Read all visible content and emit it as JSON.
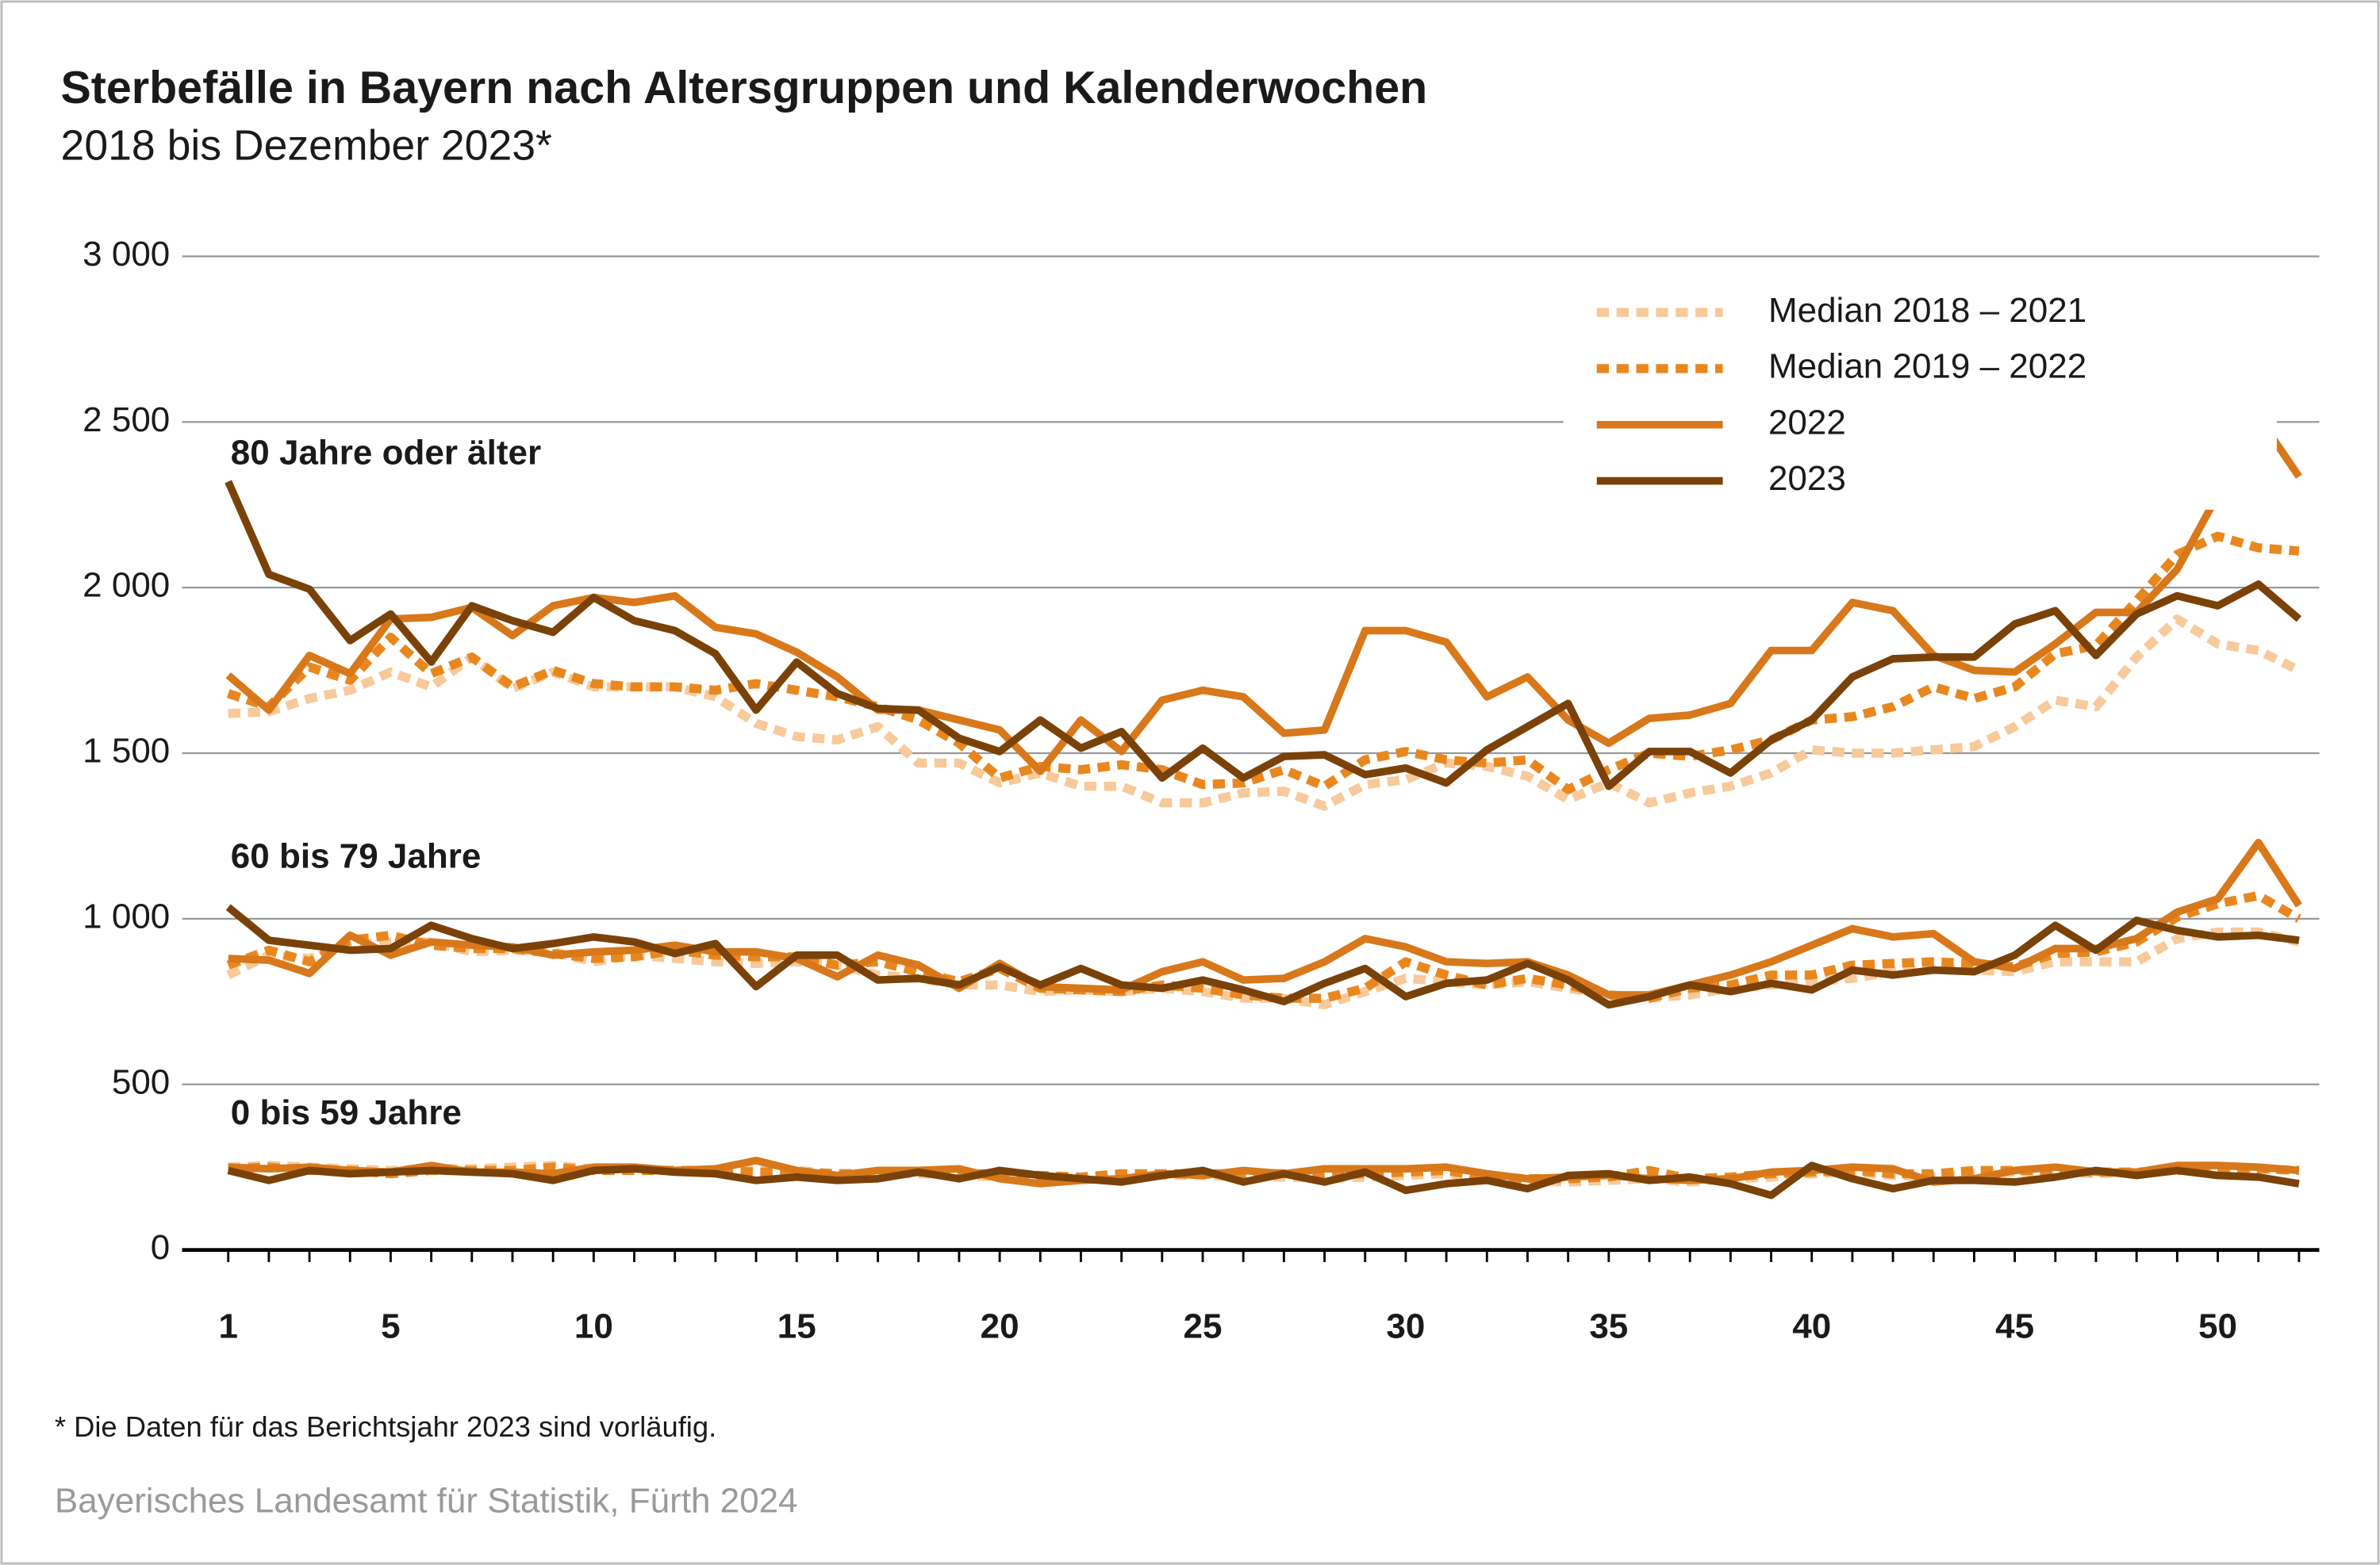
{
  "chart_data": {
    "type": "line",
    "title": "Sterbefälle in Bayern nach Altersgruppen und Kalenderwochen",
    "subtitle": "2018 bis Dezember 2023*",
    "x": [
      1,
      2,
      3,
      4,
      5,
      6,
      7,
      8,
      9,
      10,
      11,
      12,
      13,
      14,
      15,
      16,
      17,
      18,
      19,
      20,
      21,
      22,
      23,
      24,
      25,
      26,
      27,
      28,
      29,
      30,
      31,
      32,
      33,
      34,
      35,
      36,
      37,
      38,
      39,
      40,
      41,
      42,
      43,
      44,
      45,
      46,
      47,
      48,
      49,
      50,
      51,
      52
    ],
    "xlim": [
      0.5,
      52.5
    ],
    "xticks": [
      1,
      5,
      10,
      15,
      20,
      25,
      30,
      35,
      40,
      45,
      50
    ],
    "ylim": [
      0,
      3000
    ],
    "yticks": [
      0,
      500,
      {
        "value": 1000,
        "label": "1 000"
      },
      {
        "value": 1500,
        "label": "1 500"
      },
      {
        "value": 2000,
        "label": "2 000"
      },
      {
        "value": 2500,
        "label": "2 500"
      },
      {
        "value": 3000,
        "label": "3 000"
      }
    ],
    "grid": true,
    "legend": "upper right",
    "groups": [
      {
        "label": "80 Jahre oder älter",
        "series": [
          {
            "name": "Median 2018 – 2021",
            "color": "#f8c99a",
            "style": "dotted",
            "values": [
              1620,
              1625,
              1665,
              1690,
              1745,
              1700,
              1790,
              1695,
              1745,
              1700,
              1700,
              1700,
              1670,
              1590,
              1550,
              1540,
              1580,
              1470,
              1470,
              1410,
              1440,
              1400,
              1400,
              1350,
              1350,
              1380,
              1385,
              1340,
              1405,
              1420,
              1470,
              1460,
              1430,
              1360,
              1410,
              1350,
              1380,
              1400,
              1440,
              1510,
              1500,
              1500,
              1510,
              1520,
              1580,
              1660,
              1640,
              1790,
              1905,
              1830,
              1810,
              1750
            ]
          },
          {
            "name": "Median 2019 – 2022",
            "color": "#e9871f",
            "style": "dotted",
            "values": [
              1680,
              1640,
              1760,
              1720,
              1850,
              1740,
              1790,
              1700,
              1750,
              1710,
              1700,
              1700,
              1690,
              1710,
              1690,
              1670,
              1640,
              1600,
              1530,
              1425,
              1460,
              1450,
              1465,
              1450,
              1405,
              1410,
              1450,
              1400,
              1480,
              1505,
              1480,
              1470,
              1480,
              1390,
              1450,
              1500,
              1490,
              1510,
              1540,
              1600,
              1610,
              1640,
              1700,
              1665,
              1700,
              1800,
              1825,
              1960,
              2100,
              2155,
              2120,
              2110
            ]
          },
          {
            "name": "2022",
            "color": "#d8781a",
            "style": "solid",
            "values": [
              1735,
              1630,
              1795,
              1740,
              1905,
              1910,
              1940,
              1855,
              1945,
              1970,
              1955,
              1975,
              1880,
              1860,
              1805,
              1730,
              1630,
              1630,
              1600,
              1570,
              1445,
              1600,
              1505,
              1660,
              1690,
              1670,
              1560,
              1570,
              1870,
              1870,
              1835,
              1670,
              1730,
              1600,
              1530,
              1605,
              1615,
              1650,
              1810,
              1810,
              1955,
              1930,
              1795,
              1750,
              1745,
              1830,
              1925,
              1925,
              2055,
              2280,
              2515,
              2335
            ]
          },
          {
            "name": "2023",
            "color": "#7a4208",
            "style": "solid",
            "values": [
              2320,
              2040,
              1995,
              1840,
              1920,
              1775,
              1945,
              1900,
              1865,
              1970,
              1900,
              1870,
              1800,
              1630,
              1775,
              1680,
              1635,
              1630,
              1545,
              1505,
              1600,
              1515,
              1565,
              1425,
              1515,
              1425,
              1490,
              1495,
              1435,
              1455,
              1410,
              1510,
              1580,
              1650,
              1400,
              1505,
              1505,
              1440,
              1540,
              1600,
              1730,
              1785,
              1790,
              1790,
              1890,
              1930,
              1795,
              1920,
              1975,
              1945,
              2010,
              1905
            ]
          }
        ]
      },
      {
        "label": "60 bis 79 Jahre",
        "series": [
          {
            "name": "Median 2018 – 2021",
            "color": "#f8c99a",
            "style": "dotted",
            "values": [
              830,
              890,
              880,
              920,
              930,
              930,
              900,
              905,
              900,
              870,
              890,
              880,
              870,
              865,
              870,
              860,
              830,
              820,
              800,
              800,
              780,
              785,
              780,
              790,
              780,
              760,
              760,
              740,
              780,
              820,
              810,
              800,
              810,
              790,
              770,
              760,
              770,
              790,
              800,
              810,
              820,
              840,
              850,
              845,
              840,
              870,
              870,
              870,
              940,
              960,
              960,
              930
            ]
          },
          {
            "name": "Median 2019 – 2022",
            "color": "#e9871f",
            "style": "dotted",
            "values": [
              860,
              905,
              870,
              935,
              950,
              920,
              910,
              910,
              895,
              880,
              885,
              905,
              890,
              885,
              885,
              860,
              870,
              840,
              810,
              850,
              790,
              785,
              780,
              800,
              790,
              770,
              760,
              760,
              790,
              870,
              830,
              800,
              820,
              800,
              770,
              760,
              790,
              800,
              830,
              830,
              860,
              865,
              870,
              865,
              855,
              895,
              900,
              930,
              1005,
              1045,
              1070,
              1000
            ]
          },
          {
            "name": "2022",
            "color": "#d8781a",
            "style": "solid",
            "values": [
              880,
              875,
              835,
              950,
              890,
              930,
              920,
              915,
              890,
              900,
              905,
              920,
              900,
              900,
              880,
              825,
              890,
              860,
              790,
              865,
              795,
              790,
              785,
              840,
              870,
              815,
              820,
              870,
              940,
              915,
              870,
              865,
              870,
              830,
              770,
              770,
              800,
              830,
              870,
              920,
              970,
              945,
              955,
              870,
              850,
              910,
              910,
              940,
              1020,
              1060,
              1230,
              1040
            ]
          },
          {
            "name": "2023",
            "color": "#7a4208",
            "style": "solid",
            "values": [
              1035,
              935,
              920,
              905,
              910,
              980,
              940,
              910,
              925,
              945,
              930,
              895,
              925,
              795,
              890,
              890,
              815,
              820,
              800,
              855,
              800,
              850,
              800,
              790,
              815,
              785,
              750,
              805,
              850,
              765,
              805,
              815,
              865,
              815,
              740,
              765,
              800,
              780,
              805,
              785,
              845,
              830,
              845,
              840,
              890,
              980,
              905,
              995,
              965,
              945,
              950,
              935
            ]
          }
        ]
      },
      {
        "label": "0 bis 59 Jahre",
        "series": [
          {
            "name": "Median 2018 – 2021",
            "color": "#f8c99a",
            "style": "dotted",
            "values": [
              250,
              255,
              250,
              245,
              240,
              245,
              245,
              250,
              255,
              245,
              245,
              240,
              240,
              240,
              240,
              230,
              230,
              230,
              225,
              220,
              220,
              215,
              220,
              225,
              225,
              220,
              220,
              215,
              220,
              225,
              230,
              220,
              210,
              205,
              210,
              215,
              205,
              215,
              220,
              230,
              235,
              225,
              220,
              230,
              235,
              235,
              230,
              235,
              240,
              245,
              245,
              240
            ]
          },
          {
            "name": "Median 2019 – 2022",
            "color": "#e9871f",
            "style": "dotted",
            "values": [
              245,
              250,
              240,
              240,
              230,
              240,
              240,
              240,
              250,
              240,
              240,
              240,
              240,
              235,
              235,
              230,
              230,
              235,
              230,
              230,
              225,
              220,
              230,
              230,
              230,
              230,
              230,
              225,
              230,
              235,
              240,
              220,
              215,
              215,
              220,
              240,
              215,
              220,
              230,
              235,
              240,
              230,
              230,
              240,
              240,
              240,
              235,
              235,
              240,
              245,
              245,
              240
            ]
          },
          {
            "name": "2022",
            "color": "#d8781a",
            "style": "solid",
            "values": [
              250,
              245,
              250,
              240,
              235,
              255,
              235,
              235,
              230,
              250,
              250,
              240,
              245,
              270,
              240,
              225,
              240,
              240,
              245,
              215,
              200,
              210,
              215,
              230,
              225,
              240,
              230,
              245,
              245,
              245,
              250,
              230,
              215,
              220,
              225,
              215,
              210,
              215,
              235,
              240,
              250,
              245,
              205,
              215,
              240,
              250,
              235,
              235,
              255,
              255,
              250,
              240
            ]
          },
          {
            "name": "2023",
            "color": "#7a4208",
            "style": "solid",
            "values": [
              240,
              210,
              240,
              230,
              235,
              240,
              235,
              230,
              210,
              240,
              245,
              235,
              230,
              210,
              220,
              210,
              215,
              235,
              215,
              240,
              225,
              215,
              205,
              225,
              240,
              205,
              230,
              205,
              235,
              180,
              200,
              210,
              185,
              225,
              230,
              210,
              220,
              200,
              165,
              255,
              215,
              185,
              210,
              210,
              205,
              220,
              240,
              225,
              240,
              225,
              220,
              200
            ]
          }
        ]
      }
    ],
    "footnote": "* Die Daten für das Berichtsjahr 2023 sind vorläufig.",
    "source": "Bayerisches Landesamt für Statistik, Fürth 2024"
  }
}
